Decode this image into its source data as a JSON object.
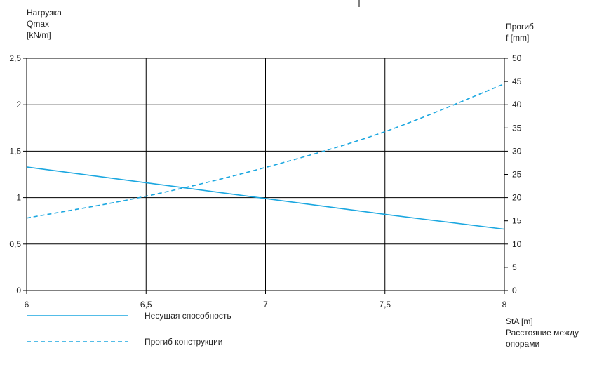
{
  "chart_data": {
    "type": "line",
    "title": "",
    "y_left_label": [
      "Нагрузка",
      "Qmax",
      "[kN/m]"
    ],
    "y_right_label": [
      "Прогиб",
      "f [mm]"
    ],
    "x_label": [
      "StA [m]",
      "Расстояние между",
      "опорами"
    ],
    "x_ticks": [
      "6",
      "6,5",
      "7",
      "7,5",
      "8"
    ],
    "x_tick_values": [
      6,
      6.5,
      7,
      7.5,
      8
    ],
    "y_left_ticks": [
      "0",
      "0,5",
      "1",
      "1,5",
      "2",
      "2,5"
    ],
    "y_left_tick_values": [
      0,
      0.5,
      1,
      1.5,
      2,
      2.5
    ],
    "y_right_ticks": [
      "0",
      "5",
      "10",
      "15",
      "20",
      "25",
      "30",
      "35",
      "40",
      "45",
      "50"
    ],
    "y_right_tick_values": [
      0,
      5,
      10,
      15,
      20,
      25,
      30,
      35,
      40,
      45,
      50
    ],
    "xlim": [
      6,
      8
    ],
    "ylim_left": [
      0,
      2.5
    ],
    "ylim_right": [
      0,
      50
    ],
    "grid": true,
    "series": [
      {
        "name": "Несущая способность",
        "axis": "left",
        "style": "solid",
        "color": "#1ba7e0",
        "x": [
          6,
          6.5,
          7,
          7.5,
          8
        ],
        "y": [
          1.33,
          1.16,
          0.99,
          0.82,
          0.66
        ]
      },
      {
        "name": "Прогиб конструкции",
        "axis": "right",
        "style": "dashed",
        "color": "#1ba7e0",
        "x": [
          6,
          6.5,
          7,
          7.5,
          8
        ],
        "y": [
          15.6,
          20.3,
          26.5,
          34.2,
          44.5
        ]
      }
    ]
  }
}
